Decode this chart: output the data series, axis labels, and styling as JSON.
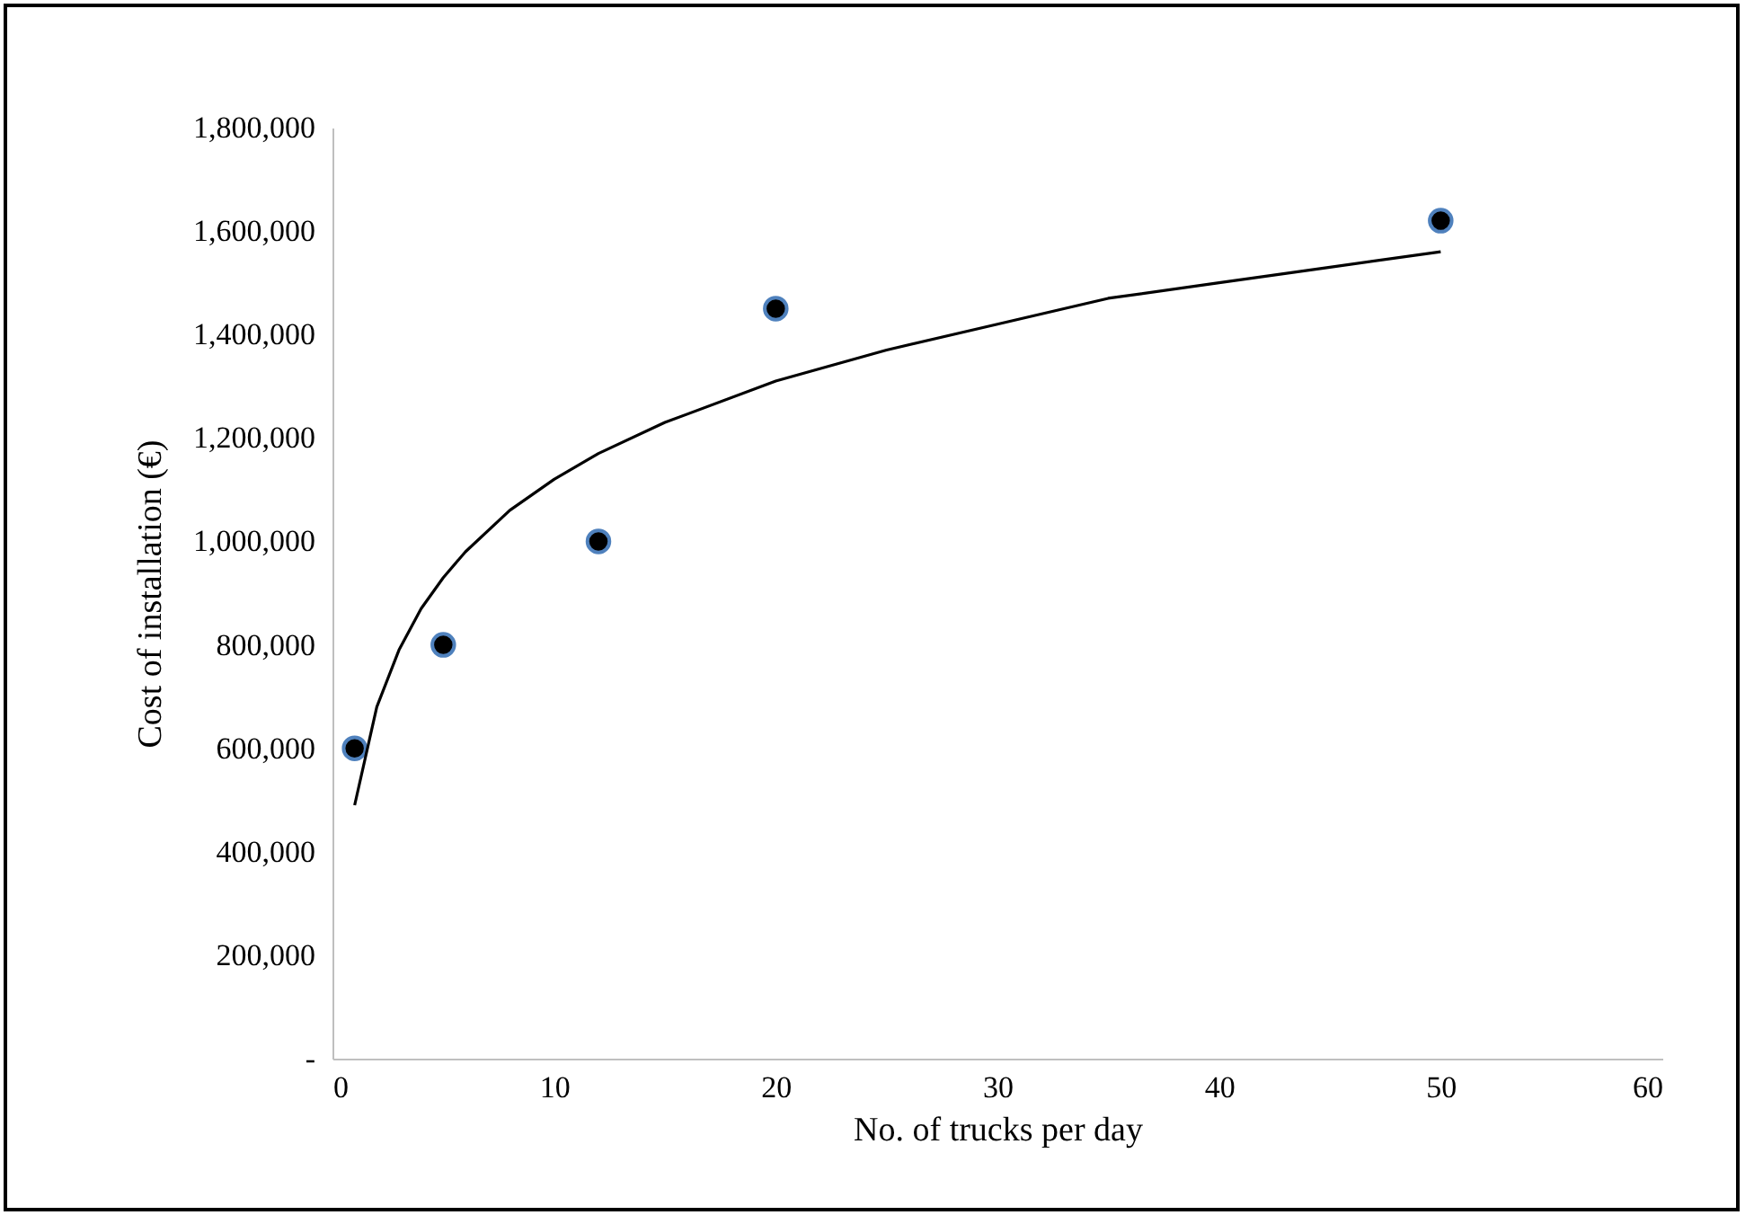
{
  "chart_data": {
    "type": "scatter",
    "xlabel": "No. of trucks per day",
    "ylabel": "Cost of installation (€)",
    "xlim": [
      0,
      60
    ],
    "xticks": [
      0,
      10,
      20,
      30,
      40,
      50,
      60
    ],
    "ylim": [
      0,
      1800000
    ],
    "yticks": [
      {
        "value": 0,
        "label": "-"
      },
      {
        "value": 200000,
        "label": "200,000"
      },
      {
        "value": 400000,
        "label": "400,000"
      },
      {
        "value": 600000,
        "label": "600,000"
      },
      {
        "value": 800000,
        "label": "800,000"
      },
      {
        "value": 1000000,
        "label": "1,000,000"
      },
      {
        "value": 1200000,
        "label": "1,200,000"
      },
      {
        "value": 1400000,
        "label": "1,400,000"
      },
      {
        "value": 1600000,
        "label": "1,600,000"
      },
      {
        "value": 1800000,
        "label": "1,800,000"
      }
    ],
    "grid": false,
    "marker": "circle",
    "series": [
      {
        "color": "#000000",
        "x": [
          1,
          5,
          12,
          20,
          50
        ],
        "values": [
          600000,
          800000,
          1000000,
          1450000,
          1620000
        ]
      },
      {
        "type": "line",
        "color": "#000000",
        "marker": "none",
        "line_style": "solid",
        "x": [
          1,
          2,
          3,
          4,
          5,
          6,
          8,
          10,
          12,
          15,
          20,
          25,
          30,
          35,
          40,
          45,
          50
        ],
        "values": [
          490000,
          680000,
          790000,
          870000,
          930000,
          980000,
          1060000,
          1120000,
          1170000,
          1230000,
          1310000,
          1370000,
          1420000,
          1470000,
          1500000,
          1530000,
          1560000
        ]
      }
    ]
  }
}
